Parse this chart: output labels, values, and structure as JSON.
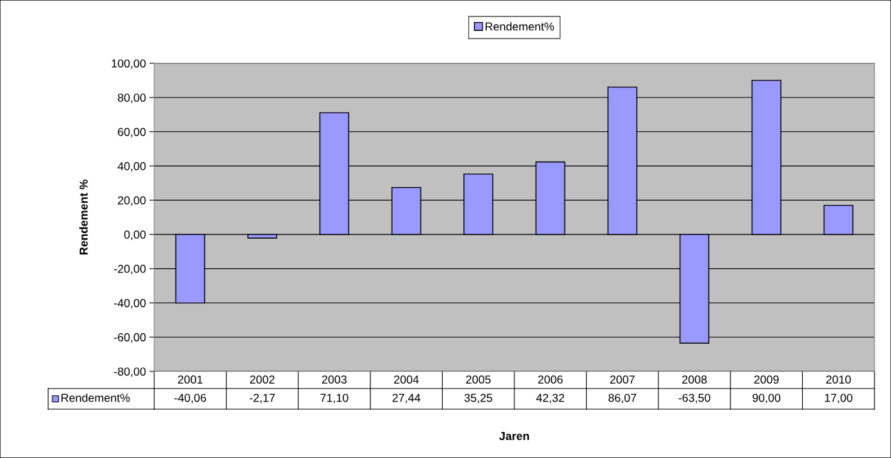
{
  "chart_data": {
    "type": "bar",
    "xlabel": "Jaren",
    "ylabel": "Rendement %",
    "categories": [
      "2001",
      "2002",
      "2003",
      "2004",
      "2005",
      "2006",
      "2007",
      "2008",
      "2009",
      "2010"
    ],
    "series": [
      {
        "name": "Rendement%",
        "color": "#9999ff",
        "values": [
          -40.06,
          -2.17,
          71.1,
          27.44,
          35.25,
          42.32,
          86.07,
          -63.5,
          90.0,
          17.0
        ],
        "value_labels": [
          "-40,06",
          "-2,17",
          "71,10",
          "27,44",
          "35,25",
          "42,32",
          "86,07",
          "-63,50",
          "90,00",
          "17,00"
        ]
      }
    ],
    "ylim": [
      -80,
      100
    ],
    "yticks": [
      {
        "value": -80,
        "label": "-80,00"
      },
      {
        "value": -60,
        "label": "-60,00"
      },
      {
        "value": -40,
        "label": "-40,00"
      },
      {
        "value": -20,
        "label": "-20,00"
      },
      {
        "value": 0,
        "label": "0,00"
      },
      {
        "value": 20,
        "label": "20,00"
      },
      {
        "value": 40,
        "label": "40,00"
      },
      {
        "value": 60,
        "label": "60,00"
      },
      {
        "value": 80,
        "label": "80,00"
      },
      {
        "value": 100,
        "label": "100,00"
      }
    ],
    "grid": "y",
    "legend": "top"
  }
}
